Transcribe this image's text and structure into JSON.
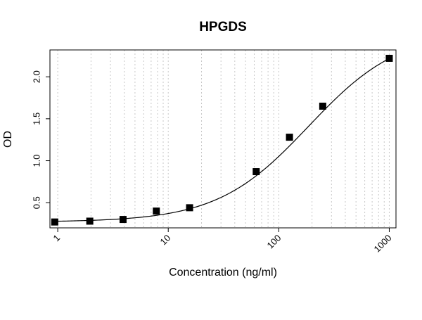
{
  "chart_data": {
    "type": "scatter",
    "title": "HPGDS",
    "xlabel": "Concentration (ng/ml)",
    "ylabel": "OD",
    "x_scale": "log",
    "xlim": [
      0.85,
      1150
    ],
    "ylim": [
      0.2,
      2.32
    ],
    "x_ticks": [
      1,
      10,
      100,
      1000
    ],
    "x_tick_labels": [
      "1",
      "10",
      "100",
      "1000"
    ],
    "y_ticks": [
      0.5,
      1.0,
      1.5,
      2.0
    ],
    "y_tick_labels": [
      "0.5",
      "1.0",
      "1.5",
      "2.0"
    ],
    "grid": "vertical dotted (log minor)",
    "series": [
      {
        "type": "scatter",
        "x": [
          0.94,
          1.95,
          3.9,
          7.8,
          15.6,
          62.5,
          125,
          250,
          1000
        ],
        "y": [
          0.27,
          0.28,
          0.3,
          0.4,
          0.44,
          0.87,
          1.28,
          1.65,
          2.22
        ]
      },
      {
        "type": "line",
        "fit": "4PL",
        "params": {
          "bottom": 0.27,
          "top": 2.55,
          "ec50": 186,
          "hill": 1.05
        }
      }
    ],
    "colors": {
      "marker": "#000000",
      "line": "#000000",
      "grid": "#c8c8c8"
    }
  }
}
